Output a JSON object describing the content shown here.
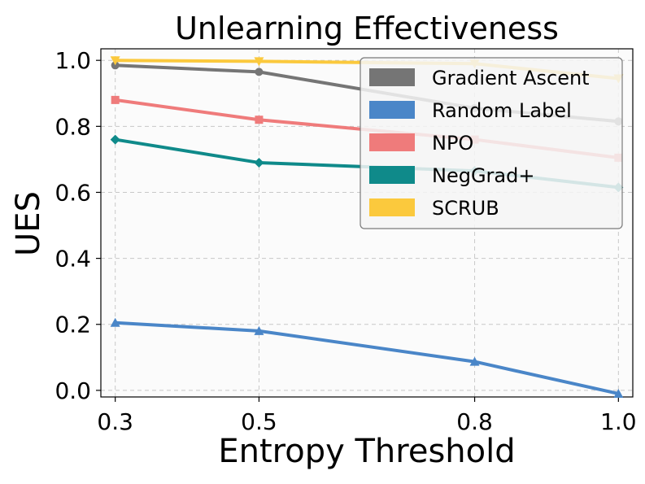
{
  "chart_data": {
    "type": "line",
    "title": "Unlearning Effectiveness",
    "xlabel": "Entropy Threshold",
    "ylabel": "UES",
    "x": [
      0.3,
      0.5,
      0.8,
      1.0
    ],
    "x_tick_labels": [
      "0.3",
      "0.5",
      "0.8",
      "1.0"
    ],
    "y_ticks": [
      0.0,
      0.2,
      0.4,
      0.6,
      0.8,
      1.0
    ],
    "y_tick_labels": [
      "0.0",
      "0.2",
      "0.4",
      "0.6",
      "0.8",
      "1.0"
    ],
    "xlim": [
      0.28,
      1.02
    ],
    "ylim": [
      -0.02,
      1.035
    ],
    "grid": true,
    "legend_position": "top-right",
    "series": [
      {
        "name": "Gradient Ascent",
        "color": "#757575",
        "marker": "circle",
        "values": [
          0.985,
          0.965,
          0.855,
          0.815
        ]
      },
      {
        "name": "Random Label",
        "color": "#4a86c8",
        "marker": "triangle",
        "values": [
          0.205,
          0.18,
          0.087,
          -0.01
        ]
      },
      {
        "name": "NPO",
        "color": "#ef7b7b",
        "marker": "square",
        "values": [
          0.88,
          0.82,
          0.76,
          0.705
        ]
      },
      {
        "name": "NegGrad+",
        "color": "#0f8a8a",
        "marker": "diamond",
        "values": [
          0.76,
          0.69,
          0.665,
          0.615
        ]
      },
      {
        "name": "SCRUB",
        "color": "#fbc93d",
        "marker": "triangle-down",
        "values": [
          1.0,
          0.997,
          0.99,
          0.945
        ]
      }
    ]
  }
}
